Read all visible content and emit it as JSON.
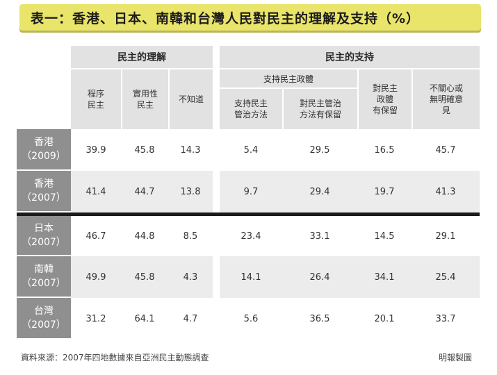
{
  "title": "表一：香港、日本、南韓和台灣人民對民主的理解及支持（%）",
  "groups": {
    "understanding": "民主的理解",
    "support": "民主的支持"
  },
  "subgroup_support_gov": "支持民主政體",
  "columns": [
    "程序\n民主",
    "實用性\n民主",
    "不知道",
    "支持民主\n管治方法",
    "對民主管治\n方法有保留",
    "對民主\n政體\n有保留",
    "不關心或\n無明確意\n見"
  ],
  "rows": [
    {
      "label": "香港",
      "year": "（2009）",
      "values": [
        "39.9",
        "45.8",
        "14.3",
        "5.4",
        "29.5",
        "16.5",
        "45.7"
      ]
    },
    {
      "label": "香港",
      "year": "（2007）",
      "values": [
        "41.4",
        "44.7",
        "13.8",
        "9.7",
        "29.4",
        "19.7",
        "41.3"
      ]
    },
    {
      "label": "日本",
      "year": "（2007）",
      "values": [
        "46.7",
        "44.8",
        "8.5",
        "23.4",
        "33.1",
        "14.5",
        "29.1"
      ]
    },
    {
      "label": "南韓",
      "year": "（2007）",
      "values": [
        "49.9",
        "45.8",
        "4.3",
        "14.1",
        "26.4",
        "34.1",
        "25.4"
      ]
    },
    {
      "label": "台灣",
      "year": "（2007）",
      "values": [
        "31.2",
        "64.1",
        "4.7",
        "5.6",
        "36.5",
        "20.1",
        "33.7"
      ]
    }
  ],
  "footer": {
    "source": "資料來源：2007年四地數據來自亞洲民主動態調查",
    "credit": "明報製圖"
  }
}
